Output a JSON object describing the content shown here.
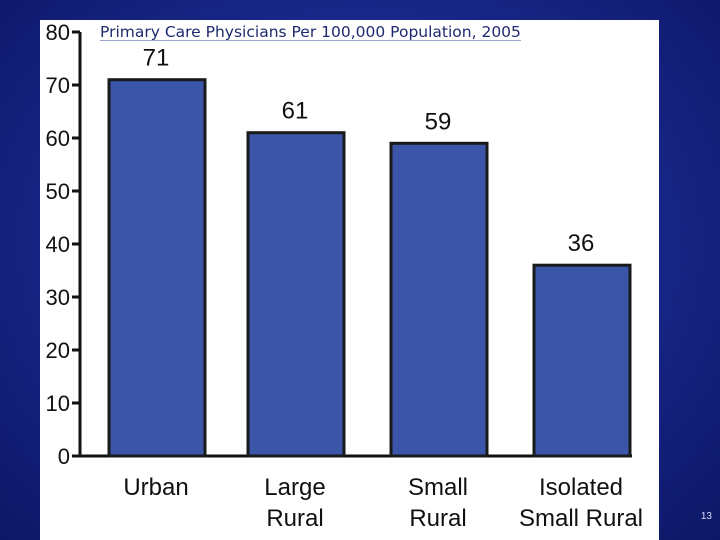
{
  "slide": {
    "page_number": "13"
  },
  "colors": {
    "background": "#1a2a8f",
    "panel": "#ffffff",
    "bar_fill": "#3b55a8",
    "bar_stroke": "#1a1a1a",
    "title": "#1f2a6e"
  },
  "chart_data": {
    "type": "bar",
    "title": "Primary Care Physicians Per 100,000 Population, 2005",
    "xlabel": "",
    "ylabel": "",
    "categories": [
      [
        "Urban"
      ],
      [
        "Large",
        "Rural"
      ],
      [
        "Small",
        "Rural"
      ],
      [
        "Isolated",
        "Small Rural"
      ]
    ],
    "values": [
      71,
      61,
      59,
      36
    ],
    "data_labels": [
      "71",
      "61",
      "59",
      "36"
    ],
    "ylim": [
      0,
      80
    ],
    "yticks": [
      0,
      10,
      20,
      30,
      40,
      50,
      60,
      70,
      80
    ],
    "grid": false,
    "legend": "none"
  }
}
